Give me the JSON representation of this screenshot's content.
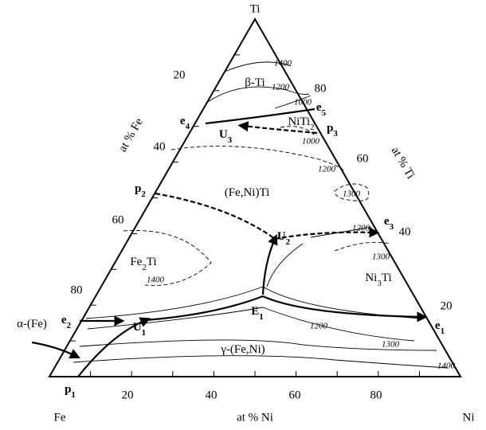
{
  "vertices": {
    "top": "Ti",
    "left": "Fe",
    "right": "Ni"
  },
  "axis_titles": {
    "left": "at % Fe",
    "right": "at % Ti",
    "bottom": "at % Ni"
  },
  "ticks": {
    "left": [
      20,
      40,
      60,
      80
    ],
    "right": [
      80,
      60,
      40,
      20
    ],
    "bottom": [
      20,
      40,
      60,
      80
    ]
  },
  "phases": [
    {
      "base": "β-Ti"
    },
    {
      "base": "NiTi",
      "sub": "2"
    },
    {
      "base": "(Fe,Ni)Ti"
    },
    {
      "base": "Fe",
      "sub": "2",
      "rest": "Ti"
    },
    {
      "base": "Ni",
      "sub": "3",
      "rest": "Ti"
    },
    {
      "base": "γ-(Fe,Ni)"
    },
    {
      "base": "α-(Fe)"
    }
  ],
  "points": [
    {
      "base": "e",
      "sub": "4"
    },
    {
      "base": "e",
      "sub": "5"
    },
    {
      "base": "p",
      "sub": "3"
    },
    {
      "base": "U",
      "sub": "3"
    },
    {
      "base": "p",
      "sub": "2"
    },
    {
      "base": "U",
      "sub": "2"
    },
    {
      "base": "e",
      "sub": "3"
    },
    {
      "base": "E",
      "sub": "1"
    },
    {
      "base": "U",
      "sub": "1"
    },
    {
      "base": "e",
      "sub": "2"
    },
    {
      "base": "e",
      "sub": "1"
    },
    {
      "base": "p",
      "sub": "1"
    }
  ],
  "isotherms": [
    "1400",
    "1200",
    "1000",
    "1000",
    "1200",
    "1300",
    "1200",
    "1300",
    "1400",
    "1200",
    "1300",
    "1400"
  ]
}
